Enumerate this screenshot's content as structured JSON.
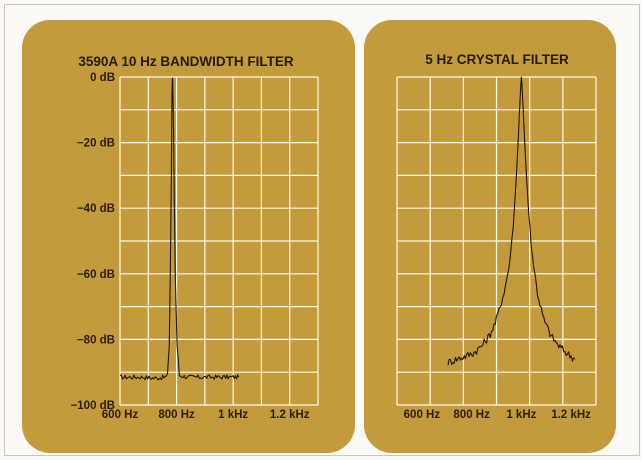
{
  "colors": {
    "page_background": "#fbfaf6",
    "panel": "#c39a3c",
    "grid": "#fffbea",
    "trace": "#1d1606",
    "text": "#231a07"
  },
  "chart_data": [
    {
      "type": "line",
      "title": "3590A 10 Hz BANDWIDTH FILTER",
      "xlabel": "",
      "ylabel": "",
      "xlim": [
        600,
        1300
      ],
      "ylim": [
        -100,
        0
      ],
      "grid": true,
      "x_ticks": [
        600,
        800,
        1000,
        1200
      ],
      "x_tick_labels": [
        "600 Hz",
        "800 Hz",
        "1 kHz",
        "1.2 kHz"
      ],
      "y_ticks": [
        0,
        -20,
        -40,
        -60,
        -80,
        -100
      ],
      "y_tick_labels": [
        "0 dB",
        "−20 dB",
        "−40 dB",
        "−60 dB",
        "−80 dB",
        "−100 dB"
      ],
      "series": [
        {
          "x": [
            600,
            640,
            680,
            720,
            760,
            768,
            774,
            778,
            781,
            783,
            784,
            785,
            786,
            787,
            789,
            792,
            796,
            802,
            810,
            840,
            880,
            920,
            960,
            1000,
            1020
          ],
          "y": [
            -91.5,
            -91.5,
            -91.5,
            -91.8,
            -91.5,
            -91,
            -82,
            -60,
            -35,
            -14,
            -5,
            -1,
            -0.3,
            -4,
            -15,
            -38,
            -62,
            -82,
            -91,
            -91.5,
            -91.5,
            -91.5,
            -91.5,
            -91.5,
            -91.5
          ]
        }
      ]
    },
    {
      "type": "line",
      "title": "5 Hz CRYSTAL FILTER",
      "xlabel": "",
      "ylabel": "",
      "xlim": [
        500,
        1300
      ],
      "ylim": [
        -100,
        0
      ],
      "grid": true,
      "x_ticks": [
        600,
        800,
        1000,
        1200
      ],
      "x_tick_labels": [
        "600 Hz",
        "800 Hz",
        "1 kHz",
        "1.2 kHz"
      ],
      "series": [
        {
          "x": [
            705,
            740,
            780,
            810,
            840,
            870,
            895,
            915,
            935,
            950,
            962,
            972,
            980,
            988,
            994,
            998,
            1000,
            1002,
            1006,
            1012,
            1020,
            1030,
            1045,
            1065,
            1090,
            1120,
            1150,
            1180,
            1215
          ],
          "y": [
            -87,
            -86,
            -85,
            -84,
            -82,
            -79,
            -75,
            -70,
            -64,
            -58,
            -50,
            -40,
            -30,
            -18,
            -8,
            -2,
            0,
            -2,
            -8,
            -18,
            -30,
            -42,
            -55,
            -66,
            -74,
            -79,
            -82,
            -84,
            -86
          ]
        }
      ]
    }
  ]
}
